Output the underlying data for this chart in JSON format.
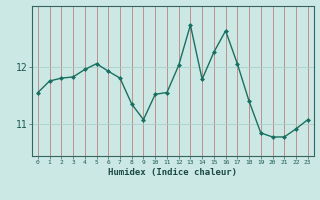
{
  "x": [
    0,
    1,
    2,
    3,
    4,
    5,
    6,
    7,
    8,
    9,
    10,
    11,
    12,
    13,
    14,
    15,
    16,
    17,
    18,
    19,
    20,
    21,
    22,
    23
  ],
  "y": [
    11.55,
    11.75,
    11.8,
    11.82,
    11.95,
    12.05,
    11.92,
    11.8,
    11.35,
    11.08,
    11.52,
    11.55,
    12.02,
    12.72,
    11.78,
    12.25,
    12.62,
    12.05,
    11.4,
    10.85,
    10.78,
    10.78,
    10.92,
    11.08
  ],
  "xlabel": "Humidex (Indice chaleur)",
  "yticks": [
    11,
    12
  ],
  "ylim": [
    10.45,
    13.05
  ],
  "xlim": [
    -0.5,
    23.5
  ],
  "line_color": "#1a7060",
  "marker_color": "#1a7060",
  "bg_color": "#cce8e4",
  "vgrid_color": "#c08080",
  "hgrid_color": "#aad0cc",
  "axis_color": "#336660",
  "tick_label_color": "#1a5a50",
  "xlabel_color": "#1a4a44"
}
